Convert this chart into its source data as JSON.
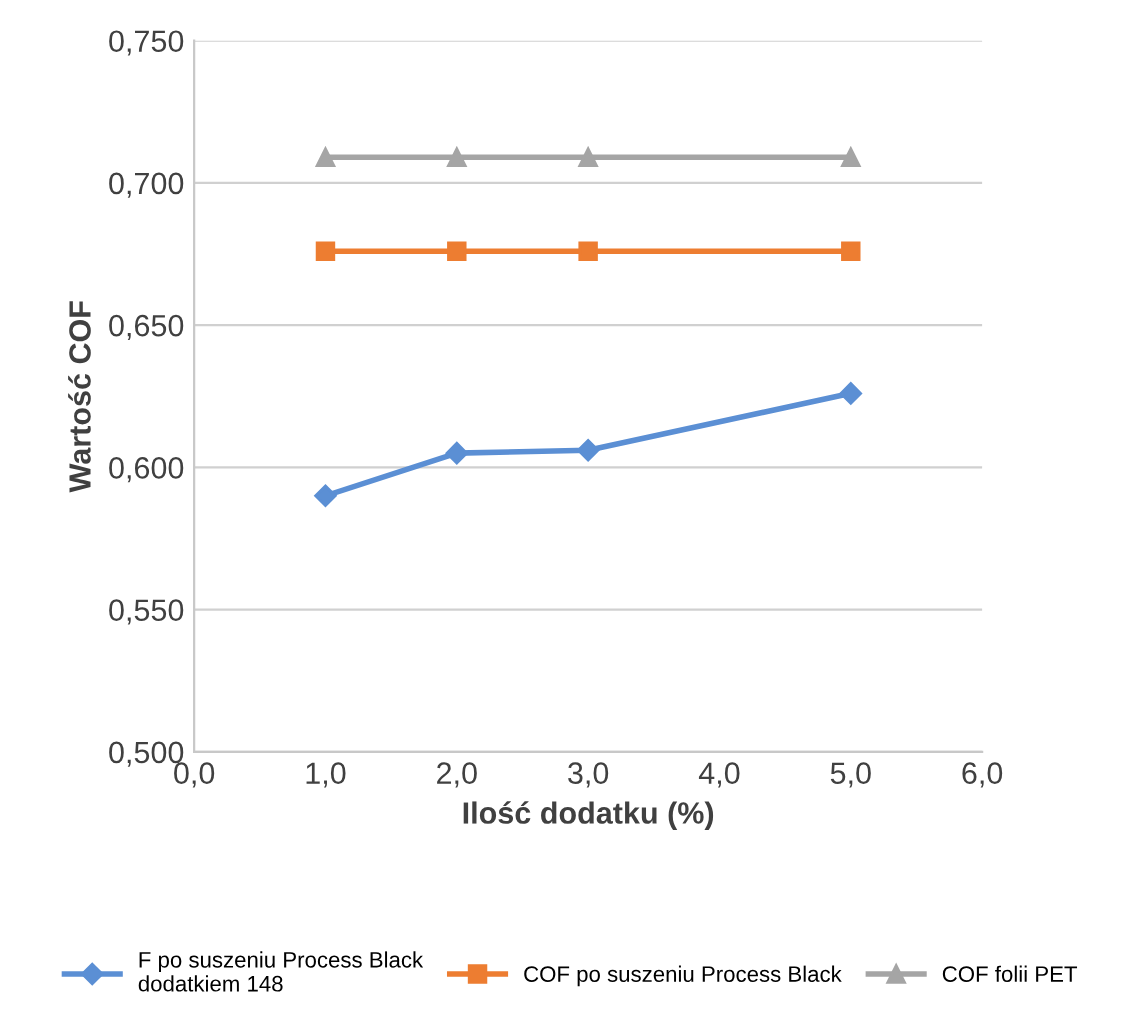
{
  "chart_data": {
    "type": "line",
    "xlabel": "Ilość dodatku (%)",
    "ylabel": "Wartość COF",
    "x": [
      1,
      2,
      3,
      5
    ],
    "series": [
      {
        "name": "F po suszeniu Process Black\ndodatkiem 148",
        "color": "#5b8fd4",
        "values": [
          0.59,
          0.605,
          0.606,
          0.626
        ],
        "marker": "diamond"
      },
      {
        "name": "COF po suszeniu Process Black",
        "color": "#ed7d31",
        "values": [
          0.676,
          0.676,
          0.676,
          0.676
        ],
        "marker": "square"
      },
      {
        "name": "COF folii PET",
        "color": "#a5a5a5",
        "values": [
          0.709,
          0.709,
          0.709,
          0.709
        ],
        "marker": "triangle"
      }
    ],
    "xlim": [
      0,
      6
    ],
    "xticks": [
      {
        "value": 0,
        "label": "0,0"
      },
      {
        "value": 1,
        "label": "1,0"
      },
      {
        "value": 2,
        "label": "2,0"
      },
      {
        "value": 3,
        "label": "3,0"
      },
      {
        "value": 4,
        "label": "4,0"
      },
      {
        "value": 5,
        "label": "5,0"
      },
      {
        "value": 6,
        "label": "6,0"
      }
    ],
    "ylim": [
      0.5,
      0.75
    ],
    "yticks": [
      {
        "value": 0.5,
        "label": "0,500"
      },
      {
        "value": 0.55,
        "label": "0,550"
      },
      {
        "value": 0.6,
        "label": "0,600"
      },
      {
        "value": 0.65,
        "label": "0,650"
      },
      {
        "value": 0.7,
        "label": "0,700"
      },
      {
        "value": 0.75,
        "label": "0,750"
      }
    ],
    "grid": "y",
    "legend": "bottom",
    "line_style": "solid"
  }
}
